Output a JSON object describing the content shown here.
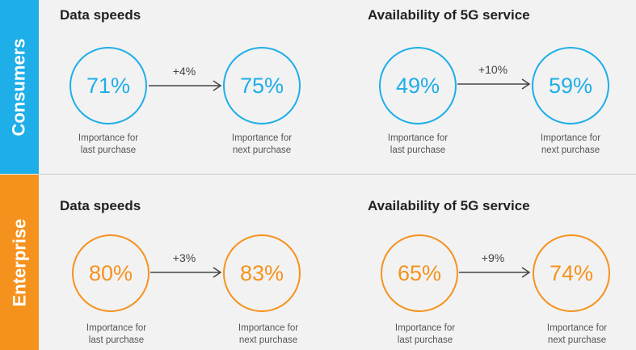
{
  "colors": {
    "consumer": "#1eaee8",
    "enterprise": "#f5921e",
    "arrow": "#444444"
  },
  "consumers": {
    "label": "Consumers",
    "groups": [
      {
        "title": "Data speeds",
        "last": {
          "value": "71%",
          "caption_line1": "Importance for",
          "caption_line2": "last purchase"
        },
        "delta": "+4%",
        "next": {
          "value": "75%",
          "caption_line1": "Importance for",
          "caption_line2": "next purchase"
        }
      },
      {
        "title": "Availability of 5G service",
        "last": {
          "value": "49%",
          "caption_line1": "Importance for",
          "caption_line2": "last purchase"
        },
        "delta": "+10%",
        "next": {
          "value": "59%",
          "caption_line1": "Importance for",
          "caption_line2": "next purchase"
        }
      }
    ]
  },
  "enterprise": {
    "label": "Enterprise",
    "groups": [
      {
        "title": "Data speeds",
        "last": {
          "value": "80%",
          "caption_line1": "Importance for",
          "caption_line2": "last purchase"
        },
        "delta": "+3%",
        "next": {
          "value": "83%",
          "caption_line1": "Importance for",
          "caption_line2": "next purchase"
        }
      },
      {
        "title": "Availability of 5G service",
        "last": {
          "value": "65%",
          "caption_line1": "Importance for",
          "caption_line2": "last purchase"
        },
        "delta": "+9%",
        "next": {
          "value": "74%",
          "caption_line1": "Importance for",
          "caption_line2": "next purchase"
        }
      }
    ]
  }
}
